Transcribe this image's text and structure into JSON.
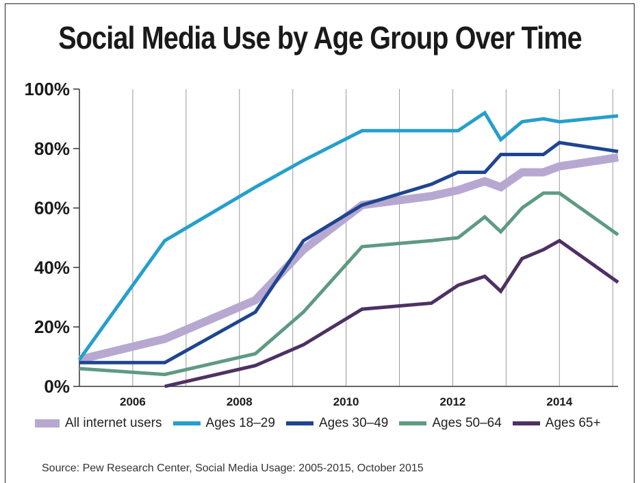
{
  "chart_data": {
    "type": "line",
    "title": "Social Media Use by Age Group Over Time",
    "xlabel": "",
    "ylabel": "",
    "xlim": [
      2005.0,
      2015.1
    ],
    "ylim": [
      0,
      100
    ],
    "x_ticks": [
      2006,
      2008,
      2010,
      2012,
      2014
    ],
    "y_ticks": [
      0,
      20,
      40,
      60,
      80,
      100
    ],
    "y_tick_labels": [
      "0%",
      "20%",
      "40%",
      "60%",
      "80%",
      "100%"
    ],
    "grid": "vertical",
    "legend_position": "bottom",
    "series": [
      {
        "name": "All internet users",
        "color": "#b7a8d1",
        "style": "thick",
        "x": [
          2005.0,
          2006.6,
          2008.3,
          2009.2,
          2010.3,
          2011.6,
          2012.1,
          2012.6,
          2012.9,
          2013.3,
          2013.7,
          2014.0,
          2015.1
        ],
        "y": [
          9,
          16,
          29,
          46,
          61,
          64,
          66,
          69,
          67,
          72,
          72,
          74,
          77
        ]
      },
      {
        "name": "Ages 18–29",
        "color": "#259fcc",
        "style": "thin",
        "x": [
          2005.0,
          2006.6,
          2008.3,
          2009.2,
          2010.3,
          2011.6,
          2012.1,
          2012.6,
          2012.9,
          2013.3,
          2013.7,
          2014.0,
          2015.1
        ],
        "y": [
          9,
          49,
          67,
          76,
          86,
          86,
          86,
          92,
          83,
          89,
          90,
          89,
          91
        ]
      },
      {
        "name": "Ages 30–49",
        "color": "#1e4591",
        "style": "thin",
        "x": [
          2005.0,
          2006.6,
          2008.3,
          2009.2,
          2010.3,
          2011.6,
          2012.1,
          2012.6,
          2012.9,
          2013.3,
          2013.7,
          2014.0,
          2015.1
        ],
        "y": [
          8,
          8,
          25,
          49,
          61,
          68,
          72,
          72,
          78,
          78,
          78,
          82,
          79
        ]
      },
      {
        "name": "Ages 50–64",
        "color": "#5e9a82",
        "style": "thin",
        "x": [
          2005.0,
          2006.6,
          2008.3,
          2009.2,
          2010.3,
          2011.6,
          2012.1,
          2012.6,
          2012.9,
          2013.3,
          2013.7,
          2014.0,
          2015.1
        ],
        "y": [
          6,
          4,
          11,
          25,
          47,
          49,
          50,
          57,
          52,
          60,
          65,
          65,
          51
        ]
      },
      {
        "name": "Ages 65+",
        "color": "#4e3163",
        "style": "thin",
        "x": [
          2006.6,
          2008.3,
          2009.2,
          2010.3,
          2011.6,
          2012.1,
          2012.6,
          2012.9,
          2013.3,
          2013.7,
          2014.0,
          2015.1
        ],
        "y": [
          0,
          7,
          14,
          26,
          28,
          34,
          37,
          32,
          43,
          46,
          49,
          35
        ]
      }
    ]
  },
  "source": "Source: Pew Research Center, Social Media Usage: 2005-2015, October 2015"
}
